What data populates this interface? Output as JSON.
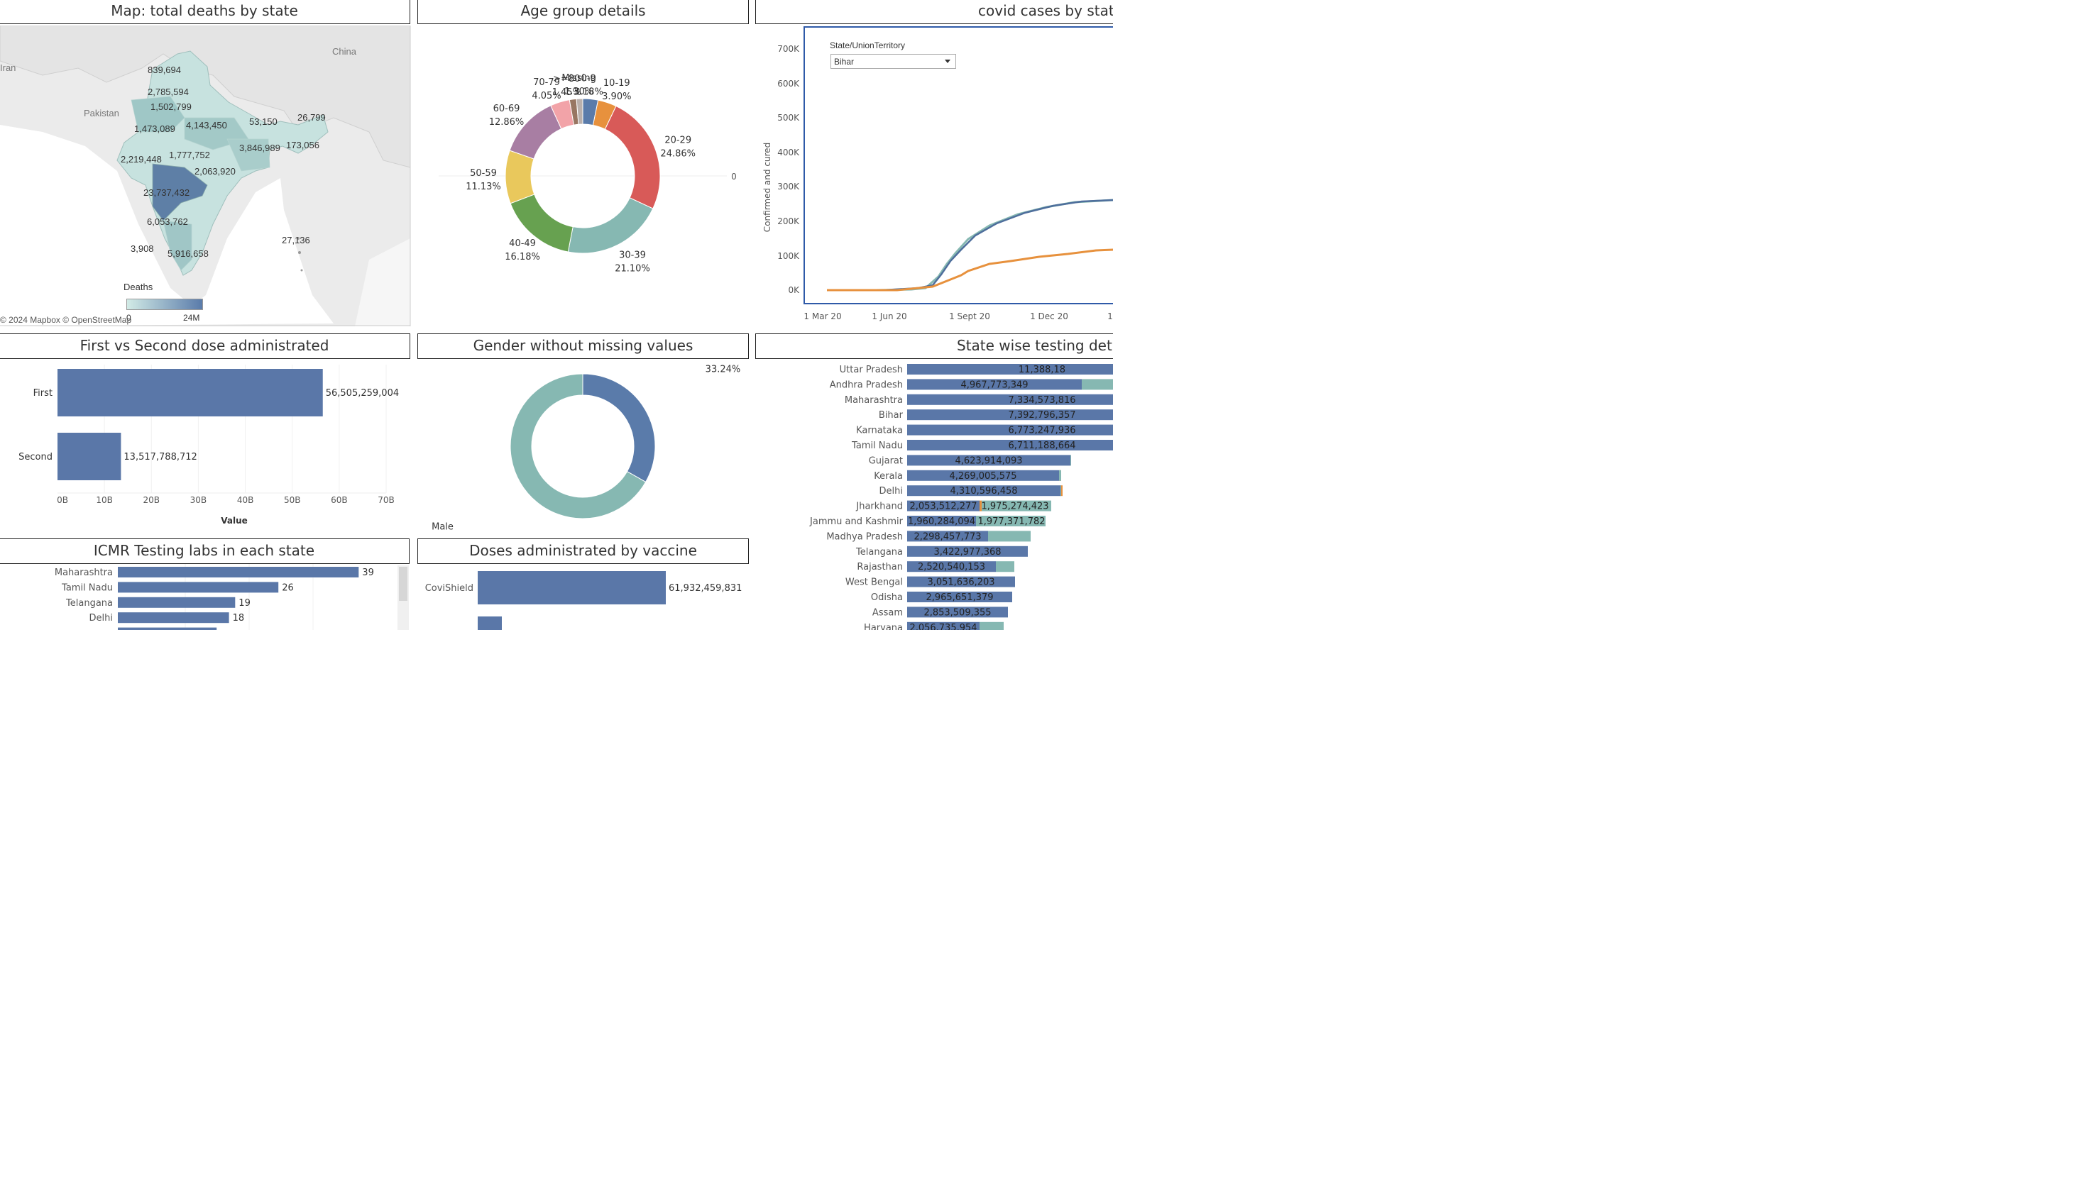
{
  "panels": {
    "map": {
      "title": "Map: total deaths by state"
    },
    "age": {
      "title": "Age group details"
    },
    "cases": {
      "title": "covid cases by state"
    },
    "dose": {
      "title": "First vs Second dose administrated"
    },
    "gender": {
      "title": "Gender without missing values"
    },
    "testing": {
      "title": "State wise testing det"
    },
    "labs": {
      "title": "ICMR Testing labs in each state"
    },
    "vaccine": {
      "title": "Doses administrated by vaccine"
    }
  },
  "map": {
    "countries": [
      "Iran",
      "Pakistan",
      "China"
    ],
    "values": [
      "839,694",
      "2,785,594",
      "1,502,799",
      "1,473,089",
      "4,143,450",
      "53,150",
      "26,799",
      "3,846,989",
      "173,056",
      "2,219,448",
      "1,777,752",
      "2,063,920",
      "23,737,432",
      "6,053,762",
      "3,908",
      "5,916,658",
      "27,136"
    ],
    "legend_title": "Deaths",
    "legend_min": "0",
    "legend_max": "24M",
    "attribution": "© 2024 Mapbox  © OpenStreetMap"
  },
  "age": {
    "slices": [
      {
        "label": "0-9",
        "pct": "3.18%",
        "value": 3.18,
        "color": "#5a7baa"
      },
      {
        "label": "10-19",
        "pct": "3.90%",
        "value": 3.9,
        "color": "#e7913d"
      },
      {
        "label": "20-29",
        "pct": "24.86%",
        "value": 24.86,
        "color": "#d85a58"
      },
      {
        "label": "30-39",
        "pct": "21.10%",
        "value": 21.1,
        "color": "#86b8b2"
      },
      {
        "label": "40-49",
        "pct": "16.18%",
        "value": 16.18,
        "color": "#67a150"
      },
      {
        "label": "50-59",
        "pct": "11.13%",
        "value": 11.13,
        "color": "#e9c85c"
      },
      {
        "label": "60-69",
        "pct": "12.86%",
        "value": 12.86,
        "color": "#a87ea3"
      },
      {
        "label": "70-79",
        "pct": "4.05%",
        "value": 4.05,
        "color": "#f2a3a8"
      },
      {
        "label": ">=80",
        "pct": "1.45%",
        "value": 1.45,
        "color": "#987662"
      },
      {
        "label": "Missing",
        "pct": "1.30%",
        "value": 1.3,
        "color": "#bab0ac"
      }
    ],
    "axis_zero": "0"
  },
  "cases": {
    "filter_label": "State/UnionTerritory",
    "filter_value": "Bihar",
    "y_axis_label": "Confirmed and cured",
    "y_ticks": [
      "700K",
      "600K",
      "500K",
      "400K",
      "300K",
      "200K",
      "100K",
      "0K"
    ],
    "x_ticks": [
      "1 Mar 20",
      "1 Jun 20",
      "1 Sept 20",
      "1 Dec 20",
      "1"
    ]
  },
  "dose": {
    "bars": [
      {
        "label": "First",
        "value": 56505259004,
        "text": "56,505,259,004"
      },
      {
        "label": "Second",
        "value": 13517788712,
        "text": "13,517,788,712"
      }
    ],
    "x_ticks": [
      "0B",
      "10B",
      "20B",
      "30B",
      "40B",
      "50B",
      "60B",
      "70B"
    ],
    "x_label": "Value"
  },
  "gender": {
    "slices": [
      {
        "label": "Female",
        "pct": "33.24%",
        "value": 33.24,
        "color": "#5a7baa"
      },
      {
        "label": "Male",
        "pct": "66.76%",
        "value": 66.76,
        "color": "#86b8b2"
      }
    ]
  },
  "testing": {
    "rows": [
      {
        "state": "Uttar Pradesh",
        "text": "11,388,18"
      },
      {
        "state": "Andhra Pradesh",
        "text": "4,967,773,349"
      },
      {
        "state": "Maharashtra",
        "text": "7,334,573,816"
      },
      {
        "state": "Bihar",
        "text": "7,392,796,357"
      },
      {
        "state": "Karnataka",
        "text": "6,773,247,936"
      },
      {
        "state": "Tamil Nadu",
        "text": "6,711,188,664"
      },
      {
        "state": "Gujarat",
        "text": "4,623,914,093"
      },
      {
        "state": "Kerala",
        "text": "4,269,005,575"
      },
      {
        "state": "Delhi",
        "text": "4,310,596,458"
      },
      {
        "state": "Jharkhand",
        "text": "2,053,512,277",
        "text2": "1,975,274,423"
      },
      {
        "state": "Jammu and Kashmir",
        "text": "1,960,284,094",
        "text2": "1,977,371,782"
      },
      {
        "state": "Madhya Pradesh",
        "text": "2,298,457,773"
      },
      {
        "state": "Telangana",
        "text": "3,422,977,368"
      },
      {
        "state": "Rajasthan",
        "text": "2,520,540,153"
      },
      {
        "state": "West Bengal",
        "text": "3,051,636,203"
      },
      {
        "state": "Odisha",
        "text": "2,965,651,379"
      },
      {
        "state": "Assam",
        "text": "2,853,509,355"
      },
      {
        "state": "Haryana",
        "text": "2,056,735,954"
      }
    ]
  },
  "labs": {
    "rows": [
      {
        "state": "Maharashtra",
        "value": 39,
        "text": "39"
      },
      {
        "state": "Tamil Nadu",
        "value": 26,
        "text": "26"
      },
      {
        "state": "Telangana",
        "value": 19,
        "text": "19"
      },
      {
        "state": "Delhi",
        "value": 18,
        "text": "18"
      }
    ]
  },
  "vaccine": {
    "bars": [
      {
        "label": "CoviShield",
        "value": 61932459831,
        "text": "61,932,459,831"
      }
    ]
  }
}
